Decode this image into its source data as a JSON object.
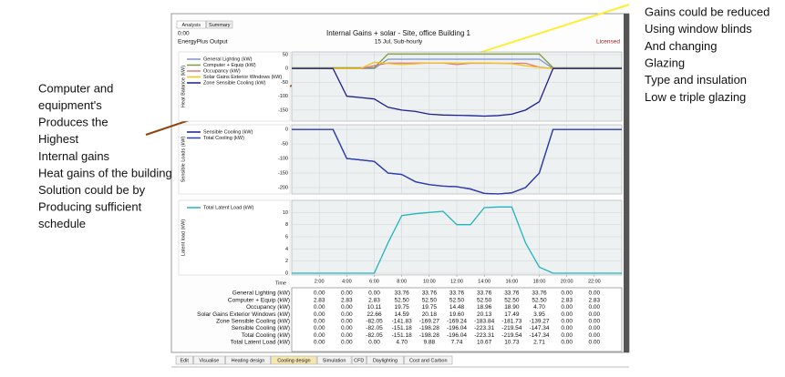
{
  "annotations": {
    "left": [
      "Computer and",
      "equipment's",
      "Produces the",
      "Highest",
      "Internal gains",
      "Heat gains of the building",
      "Solution could be by",
      "Producing sufficient",
      "schedule"
    ],
    "right": [
      "Gains could be reduced",
      "Using window blinds",
      "And changing",
      "Glazing",
      "Type and insulation",
      "Low e triple glazing"
    ]
  },
  "window": {
    "tabs": [
      "Analysis",
      "Summary"
    ],
    "time": "0:00",
    "source": "EnergyPlus Output",
    "title": "Internal Gains + solar - Site, office Building 1",
    "subtitle": "15 Jul, Sub-hourly",
    "license": "Licensed",
    "bottom_tabs": [
      "Edit",
      "Visualise",
      "Heating design",
      "Cooling design",
      "Simulation",
      "CFD",
      "Daylighting",
      "Cost and Carbon"
    ]
  },
  "chart_data": [
    {
      "type": "line",
      "y_label": "Heat Balance (kW)",
      "x": [
        0,
        1,
        2,
        3,
        4,
        5,
        6,
        7,
        8,
        9,
        10,
        11,
        12,
        13,
        14,
        15,
        16,
        17,
        18,
        19,
        20,
        21,
        22,
        23,
        24
      ],
      "xlim": [
        0,
        24
      ],
      "ylim": [
        -190,
        60
      ],
      "yticks": [
        50,
        0,
        -50,
        -100,
        -150
      ],
      "grid": true,
      "series": [
        {
          "name": "General Lighting (kW)",
          "color": "#7f93c9",
          "values": [
            0,
            0,
            0,
            0,
            0,
            0,
            0,
            33.76,
            33.76,
            33.76,
            33.76,
            33.76,
            33.76,
            33.76,
            33.76,
            33.76,
            33.76,
            33.76,
            33.76,
            0,
            0,
            0,
            0,
            0,
            0
          ]
        },
        {
          "name": "Computer + Equip (kW)",
          "color": "#7e9a3c",
          "values": [
            2.83,
            2.83,
            2.83,
            2.83,
            2.83,
            2.83,
            2.83,
            52.5,
            52.5,
            52.5,
            52.5,
            52.5,
            52.5,
            52.5,
            52.5,
            52.5,
            52.5,
            52.5,
            52.5,
            2.83,
            2.83,
            2.83,
            2.83,
            2.83,
            2.83
          ]
        },
        {
          "name": "Occupancy (kW)",
          "color": "#e07a7a",
          "values": [
            0,
            0,
            0,
            0,
            0,
            0,
            10.11,
            19.75,
            19.75,
            19.75,
            19.75,
            19.75,
            14.48,
            18.96,
            18.96,
            18.96,
            18.9,
            18.9,
            4.7,
            0,
            0,
            0,
            0,
            0,
            0
          ]
        },
        {
          "name": "Solar Gains Exterior Windows (kW)",
          "color": "#f2c21b",
          "values": [
            0,
            0,
            0,
            0,
            0,
            0,
            22.66,
            18,
            14.59,
            17,
            20.18,
            20,
            19.6,
            20,
            20.13,
            19,
            17.49,
            10,
            3.95,
            0,
            0,
            0,
            0,
            0,
            0
          ]
        },
        {
          "name": "Zone Sensible Cooling (kW)",
          "color": "#1b1f8c",
          "values": [
            0,
            0,
            0,
            0,
            -100,
            -105,
            -110,
            -140,
            -150,
            -155,
            -165,
            -168,
            -169,
            -170,
            -172,
            -170,
            -165,
            -150,
            -120,
            0,
            0,
            0,
            0,
            0,
            0
          ]
        }
      ]
    },
    {
      "type": "line",
      "y_label": "Sensible Loads (kW)",
      "x": [
        0,
        1,
        2,
        3,
        4,
        5,
        6,
        7,
        8,
        9,
        10,
        11,
        12,
        13,
        14,
        15,
        16,
        17,
        18,
        19,
        20,
        21,
        22,
        23,
        24
      ],
      "xlim": [
        0,
        24
      ],
      "ylim": [
        -222,
        16
      ],
      "yticks": [
        0,
        -50,
        -100,
        -150,
        -200
      ],
      "grid": true,
      "series": [
        {
          "name": "Sensible Cooling (kW)",
          "color": "#1b1f8c",
          "values": [
            0,
            0,
            0,
            0,
            -100,
            -105,
            -110,
            -150,
            -155,
            -180,
            -190,
            -195,
            -197,
            -205,
            -220,
            -222,
            -218,
            -200,
            -150,
            0,
            0,
            0,
            0,
            0,
            0
          ]
        },
        {
          "name": "Total Cooling (kW)",
          "color": "#2a3fb0",
          "values": [
            0,
            0,
            0,
            0,
            -100,
            -105,
            -110,
            -150,
            -155,
            -180,
            -190,
            -195,
            -197,
            -205,
            -220,
            -222,
            -218,
            -200,
            -150,
            0,
            0,
            0,
            0,
            0,
            0
          ]
        }
      ]
    },
    {
      "type": "line",
      "y_label": "Latent load (kW)",
      "x_label": "Time",
      "x": [
        0,
        1,
        2,
        3,
        4,
        5,
        6,
        7,
        8,
        9,
        10,
        11,
        12,
        13,
        14,
        15,
        16,
        17,
        18,
        19,
        20,
        21,
        22,
        23,
        24
      ],
      "xlim": [
        0,
        24
      ],
      "ylim": [
        -0.3,
        12
      ],
      "yticks": [
        0,
        2,
        4,
        6,
        8,
        10
      ],
      "xticks": [
        {
          "value": 2,
          "label": "2:00"
        },
        {
          "value": 4,
          "label": "4:00"
        },
        {
          "value": 6,
          "label": "6:00"
        },
        {
          "value": 8,
          "label": "8:00"
        },
        {
          "value": 10,
          "label": "10:00"
        },
        {
          "value": 12,
          "label": "12:00"
        },
        {
          "value": 14,
          "label": "14:00"
        },
        {
          "value": 16,
          "label": "16:00"
        },
        {
          "value": 18,
          "label": "18:00"
        },
        {
          "value": 20,
          "label": "20:00"
        },
        {
          "value": 22,
          "label": "22:00"
        }
      ],
      "grid": true,
      "series": [
        {
          "name": "Total Latent Load (kW)",
          "color": "#22b5bf",
          "values": [
            0,
            0,
            0,
            0,
            0,
            0,
            0,
            5,
            9.5,
            9.8,
            10,
            10.2,
            8,
            8,
            10.8,
            10.9,
            10.9,
            5,
            1,
            0,
            0,
            0,
            0,
            0,
            0
          ]
        }
      ]
    }
  ],
  "table": {
    "rows": [
      {
        "label": "General Lighting (kW)",
        "cells": [
          "0.00",
          "0.00",
          "0.00",
          "33.76",
          "33.76",
          "33.76",
          "33.76",
          "33.76",
          "33.76",
          "0.00",
          "0.00"
        ]
      },
      {
        "label": "Computer + Equip (kW)",
        "cells": [
          "2.83",
          "2.83",
          "2.83",
          "52.50",
          "52.50",
          "52.50",
          "52.50",
          "52.50",
          "52.50",
          "2.83",
          "2.83"
        ]
      },
      {
        "label": "Occupancy (kW)",
        "cells": [
          "0.00",
          "0.00",
          "10.11",
          "19.75",
          "19.75",
          "14.48",
          "18.96",
          "18.90",
          "4.70",
          "0.00",
          "0.00"
        ]
      },
      {
        "label": "Solar Gains Exterior Windows (kW)",
        "cells": [
          "0.00",
          "0.00",
          "22.66",
          "14.59",
          "20.18",
          "19.60",
          "20.13",
          "17.49",
          "3.95",
          "0.00",
          "0.00"
        ]
      },
      {
        "label": "Zone Sensible Cooling (kW)",
        "cells": [
          "0.00",
          "0.00",
          "-82.05",
          "-141.83",
          "-169.27",
          "-169.24",
          "-183.84",
          "-181.73",
          "-139.27",
          "0.00",
          "0.00"
        ]
      },
      {
        "label": "Sensible Cooling (kW)",
        "cells": [
          "0.00",
          "0.00",
          "-82.05",
          "-151.18",
          "-198.28",
          "-196.04",
          "-223.31",
          "-219.54",
          "-147.34",
          "0.00",
          "0.00"
        ]
      },
      {
        "label": "Total Cooling (kW)",
        "cells": [
          "0.00",
          "0.00",
          "-82.05",
          "-151.18",
          "-198.28",
          "-196.04",
          "-223.31",
          "-219.54",
          "-147.34",
          "0.00",
          "0.00"
        ]
      },
      {
        "label": "Total Latent Load (kW)",
        "cells": [
          "0.00",
          "0.00",
          "0.00",
          "4.70",
          "9.88",
          "7.74",
          "10.67",
          "10.73",
          "2.71",
          "0.00",
          "0.00"
        ]
      }
    ]
  }
}
